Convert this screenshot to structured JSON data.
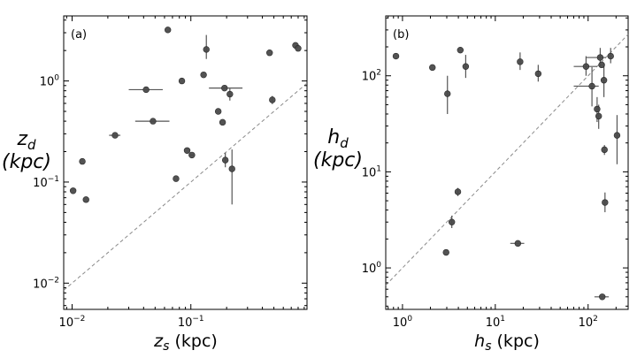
{
  "chart_data": [
    {
      "type": "scatter",
      "panel_label": "(a)",
      "xlabel_main": "z",
      "xlabel_sub": "s",
      "xlabel_unit": " (kpc)",
      "ylabel_main": "z",
      "ylabel_sub": "d",
      "ylabel_unit": "(kpc)",
      "xscale": "log",
      "yscale": "log",
      "xlim": [
        0.0085,
        0.95
      ],
      "ylim": [
        0.0055,
        4.4
      ],
      "x_ticks": [
        {
          "value": 0.01,
          "base": "10",
          "exp": "−2"
        },
        {
          "value": 0.1,
          "base": "10",
          "exp": "−1"
        }
      ],
      "y_ticks": [
        {
          "value": 0.01,
          "base": "10",
          "exp": "−2"
        },
        {
          "value": 0.1,
          "base": "10",
          "exp": "−1"
        },
        {
          "value": 1,
          "base": "10",
          "exp": "0"
        }
      ],
      "reference_line": "y = x",
      "points": [
        {
          "x": 0.0102,
          "y": 0.082
        },
        {
          "x": 0.0122,
          "y": 0.16
        },
        {
          "x": 0.0131,
          "y": 0.067
        },
        {
          "x": 0.023,
          "y": 0.29,
          "xerr": [
            0.0025,
            0.0025
          ]
        },
        {
          "x": 0.042,
          "y": 0.82,
          "xerr": [
            0.012,
            0.016
          ]
        },
        {
          "x": 0.048,
          "y": 0.4,
          "xerr": [
            0.014,
            0.018
          ]
        },
        {
          "x": 0.064,
          "y": 3.2
        },
        {
          "x": 0.075,
          "y": 0.108
        },
        {
          "x": 0.084,
          "y": 1.0
        },
        {
          "x": 0.093,
          "y": 0.205
        },
        {
          "x": 0.102,
          "y": 0.185,
          "xerr": [
            0.006,
            0.006
          ]
        },
        {
          "x": 0.128,
          "y": 1.15
        },
        {
          "x": 0.135,
          "y": 2.05,
          "yerr": [
            0.4,
            0.8
          ]
        },
        {
          "x": 0.17,
          "y": 0.5
        },
        {
          "x": 0.185,
          "y": 0.39
        },
        {
          "x": 0.192,
          "y": 0.85,
          "xerr": [
            0.05,
            0.08
          ]
        },
        {
          "x": 0.195,
          "y": 0.165,
          "yerr": [
            0.025,
            0.03
          ]
        },
        {
          "x": 0.213,
          "y": 0.74,
          "yerr": [
            0.1,
            0.1
          ]
        },
        {
          "x": 0.222,
          "y": 0.135,
          "yerr": [
            0.075,
            0.075
          ]
        },
        {
          "x": 0.46,
          "y": 1.9
        },
        {
          "x": 0.485,
          "y": 0.65,
          "yerr": [
            0.06,
            0.06
          ]
        },
        {
          "x": 0.76,
          "y": 2.25
        },
        {
          "x": 0.8,
          "y": 2.1
        }
      ]
    },
    {
      "type": "scatter",
      "panel_label": "(b)",
      "xlabel_main": "h",
      "xlabel_sub": "s",
      "xlabel_unit": " (kpc)",
      "ylabel_main": "h",
      "ylabel_sub": "d",
      "ylabel_unit": "(kpc)",
      "xscale": "log",
      "yscale": "log",
      "xlim": [
        0.66,
        270
      ],
      "ylim": [
        0.37,
        420
      ],
      "x_ticks": [
        {
          "value": 1,
          "base": "10",
          "exp": "0"
        },
        {
          "value": 10,
          "base": "10",
          "exp": "1"
        },
        {
          "value": 100,
          "base": "10",
          "exp": "2"
        }
      ],
      "y_ticks": [
        {
          "value": 1,
          "base": "10",
          "exp": "0"
        },
        {
          "value": 10,
          "base": "10",
          "exp": "1"
        },
        {
          "value": 100,
          "base": "10",
          "exp": "2"
        }
      ],
      "reference_line": "y = x",
      "points": [
        {
          "x": 0.85,
          "y": 160
        },
        {
          "x": 2.1,
          "y": 122
        },
        {
          "x": 2.95,
          "y": 1.45
        },
        {
          "x": 3.05,
          "y": 65,
          "yerr": [
            25,
            35
          ]
        },
        {
          "x": 3.4,
          "y": 3.0,
          "yerr": [
            0.4,
            0.5
          ]
        },
        {
          "x": 3.95,
          "y": 6.2,
          "yerr": [
            0.6,
            0.6
          ]
        },
        {
          "x": 4.2,
          "y": 185
        },
        {
          "x": 4.8,
          "y": 125,
          "yerr": [
            30,
            40
          ]
        },
        {
          "x": 17.5,
          "y": 1.8,
          "xerr": [
            3,
            3
          ]
        },
        {
          "x": 18.5,
          "y": 140,
          "yerr": [
            25,
            35
          ]
        },
        {
          "x": 29,
          "y": 105,
          "yerr": [
            18,
            25
          ]
        },
        {
          "x": 95,
          "y": 125,
          "xerr": [
            25,
            30
          ],
          "yerr": [
            25,
            35
          ]
        },
        {
          "x": 110,
          "y": 78,
          "xerr": [
            40,
            20
          ],
          "yerr": [
            30,
            45
          ]
        },
        {
          "x": 125,
          "y": 45,
          "yerr": [
            12,
            15
          ]
        },
        {
          "x": 130,
          "y": 38,
          "yerr": [
            10,
            12
          ]
        },
        {
          "x": 135,
          "y": 155,
          "xerr": [
            40,
            20
          ],
          "yerr": [
            30,
            40
          ]
        },
        {
          "x": 140,
          "y": 130
        },
        {
          "x": 142,
          "y": 0.5,
          "xerr": [
            25,
            25
          ]
        },
        {
          "x": 148,
          "y": 90,
          "yerr": [
            30,
            45
          ]
        },
        {
          "x": 150,
          "y": 17,
          "yerr": [
            2,
            2
          ]
        },
        {
          "x": 152,
          "y": 4.8,
          "yerr": [
            1,
            1.3
          ]
        },
        {
          "x": 175,
          "y": 160,
          "yerr": [
            25,
            35
          ]
        },
        {
          "x": 205,
          "y": 24,
          "yerr": [
            12,
            15
          ]
        }
      ]
    }
  ]
}
